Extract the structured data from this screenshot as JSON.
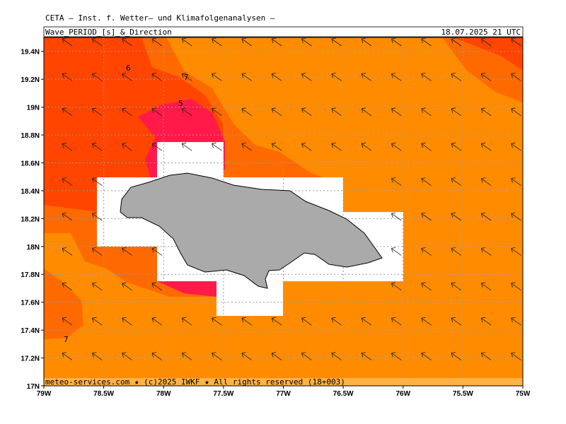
{
  "header": {
    "title": "CETA – Inst. f. Wetter– und Klimafolgenanalysen –",
    "field": "Wave_PERIOD_[s]_&_Direction",
    "valid_time": "18.07.2025 21 UTC"
  },
  "map": {
    "lon_range": [
      -79,
      -75
    ],
    "lat_range": [
      17,
      19.5
    ],
    "lon_ticks": [
      {
        "value": -79,
        "label": "79W"
      },
      {
        "value": -78.5,
        "label": "78.5W"
      },
      {
        "value": -78,
        "label": "78W"
      },
      {
        "value": -77.5,
        "label": "77.5W"
      },
      {
        "value": -77,
        "label": "77W"
      },
      {
        "value": -76.5,
        "label": "76.5W"
      },
      {
        "value": -76,
        "label": "76W"
      },
      {
        "value": -75.5,
        "label": "75.5W"
      },
      {
        "value": -75,
        "label": "75W"
      }
    ],
    "lat_ticks": [
      {
        "value": 17,
        "label": "17N"
      },
      {
        "value": 17.2,
        "label": "17.2N"
      },
      {
        "value": 17.4,
        "label": "17.4N"
      },
      {
        "value": 17.6,
        "label": "17.6N"
      },
      {
        "value": 17.8,
        "label": "17.8N"
      },
      {
        "value": 18,
        "label": "18N"
      },
      {
        "value": 18.2,
        "label": "18.2N"
      },
      {
        "value": 18.4,
        "label": "18.4N"
      },
      {
        "value": 18.6,
        "label": "18.6N"
      },
      {
        "value": 18.8,
        "label": "18.8N"
      },
      {
        "value": 19,
        "label": "19N"
      },
      {
        "value": 19.2,
        "label": "19.2N"
      },
      {
        "value": 19.4,
        "label": "19.4N"
      }
    ],
    "contour_labels": [
      "6",
      "7",
      "5",
      "7"
    ],
    "footer": "meteo-services.com ★ (c)2025 IWKF ★ All rights reserved (18+003)"
  }
}
